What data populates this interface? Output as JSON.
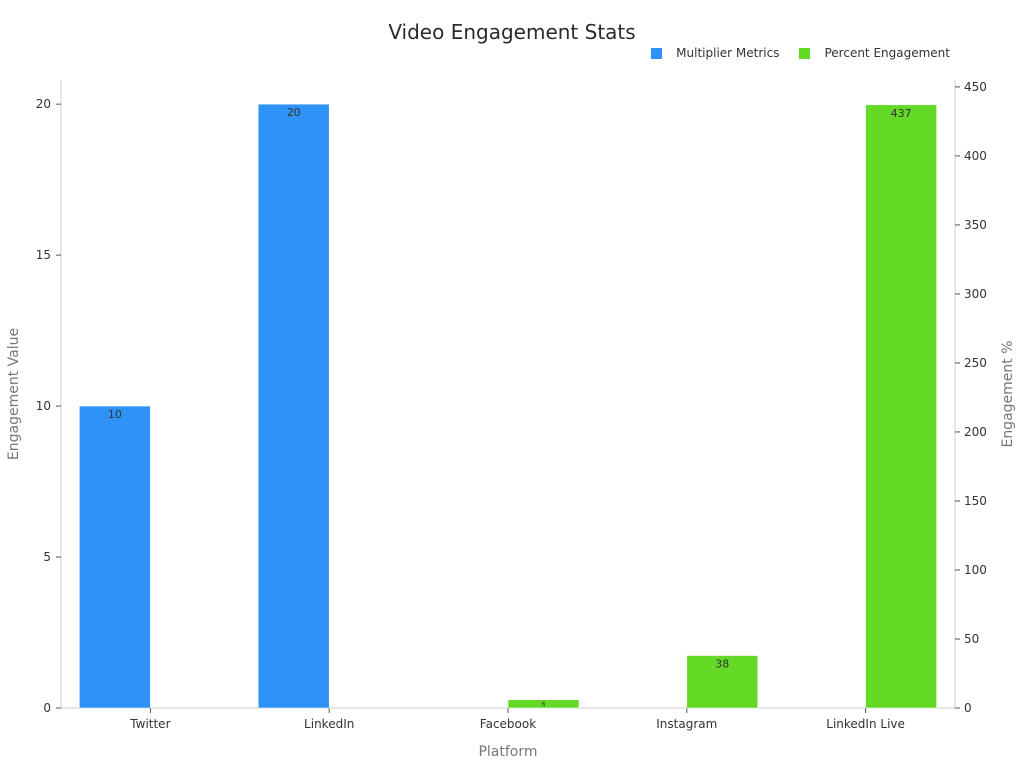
{
  "chart_data": {
    "type": "bar",
    "title": "Video Engagement Stats",
    "xlabel": "Platform",
    "ylabel": "Engagement Value",
    "y2label": "Engagement %",
    "categories": [
      "Twitter",
      "LinkedIn",
      "Facebook",
      "Instagram",
      "LinkedIn Live"
    ],
    "ylim": [
      0,
      20.8
    ],
    "y2lim": [
      0,
      455
    ],
    "yticks": [
      0,
      5,
      10,
      15,
      20
    ],
    "y2ticks": [
      0,
      50,
      100,
      150,
      200,
      250,
      300,
      350,
      400,
      450
    ],
    "legend_position": "top-right",
    "grid": false,
    "series": [
      {
        "name": "Multiplier Metrics",
        "axis": "left",
        "color": "#2f92f7",
        "values": [
          10,
          20,
          null,
          null,
          null
        ],
        "labels": [
          "10",
          "20",
          null,
          null,
          null
        ]
      },
      {
        "name": "Percent Engagement",
        "axis": "right",
        "color": "#64d926",
        "values": [
          null,
          null,
          6,
          38,
          437
        ],
        "labels": [
          null,
          null,
          "6",
          "38",
          "437"
        ]
      }
    ]
  }
}
